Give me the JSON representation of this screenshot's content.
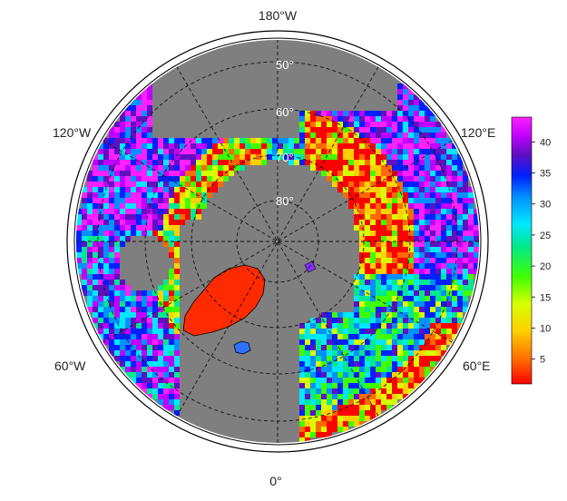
{
  "map": {
    "projection": "north-polar-stereographic",
    "ocean_color": "#7f7f7f",
    "coast_color": "#000000",
    "grid_color": "#111111",
    "longitude_labels": {
      "top": "180°W",
      "upper_left": "120°W",
      "upper_right": "120°E",
      "lower_left": "60°W",
      "lower_right": "60°E",
      "bottom": "0°"
    },
    "latitude_labels": [
      "50°",
      "60°",
      "70°",
      "80°"
    ],
    "latitude_circles_deg": [
      50,
      60,
      70,
      80
    ]
  },
  "colorbar": {
    "ticks": [
      "40",
      "35",
      "30",
      "25",
      "20",
      "15",
      "10",
      "5"
    ],
    "tick_values": [
      40,
      35,
      30,
      25,
      20,
      15,
      10,
      5
    ],
    "range": [
      1,
      44
    ],
    "colors": [
      "#ff0000",
      "#ff6a00",
      "#ffd000",
      "#d8ff00",
      "#40ff00",
      "#00e890",
      "#00e8ff",
      "#0090ff",
      "#0020ff",
      "#6010c0",
      "#c000ff",
      "#ff20ff"
    ]
  }
}
